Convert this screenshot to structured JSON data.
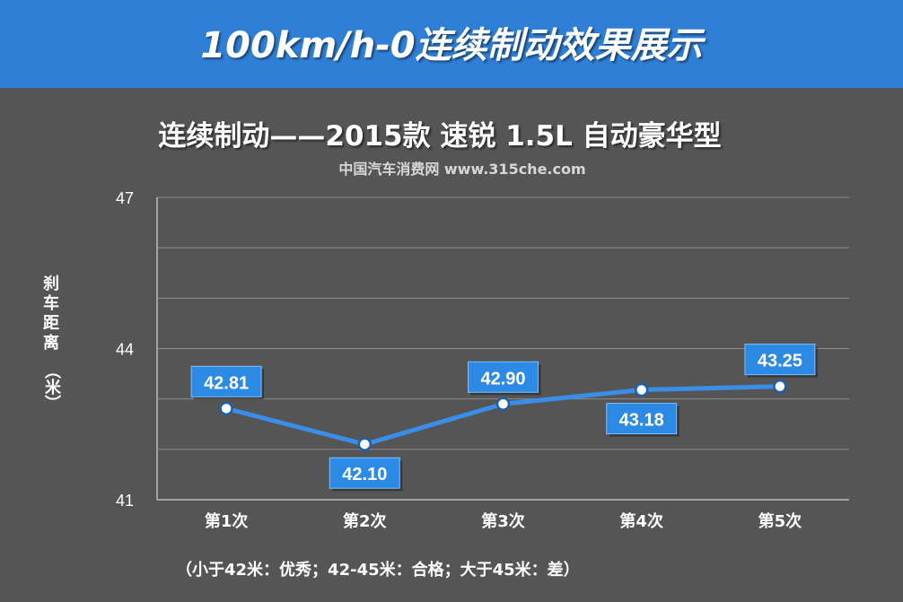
{
  "banner": {
    "title": "100km/h-0连续制动效果展示"
  },
  "source": "中国汽车消费网 www.315che.com",
  "y_axis_label_text": "刹车距离",
  "y_axis_unit_text": "（米）",
  "note": "（小于42米：优秀；42-45米：合格；大于45米：差）",
  "colors": {
    "banner": "#2f7fd6",
    "background": "#555555",
    "line": "#3a8ee8",
    "label_box": "#2c8ae4"
  },
  "chart_data": {
    "type": "line",
    "title": "连续制动——2015款 速锐 1.5L 自动豪华型",
    "xlabel": "",
    "ylabel": "刹车距离（米）",
    "categories": [
      "第1次",
      "第2次",
      "第3次",
      "第4次",
      "第5次"
    ],
    "series": [
      {
        "values": [
          42.81,
          42.1,
          42.9,
          43.18,
          43.25
        ]
      }
    ],
    "data_labels": [
      "42.81",
      "42.10",
      "42.90",
      "43.18",
      "43.25"
    ],
    "ylim": [
      41,
      47
    ],
    "yticks": [
      "41",
      "44",
      "47"
    ],
    "grid": true,
    "legend": "none"
  }
}
